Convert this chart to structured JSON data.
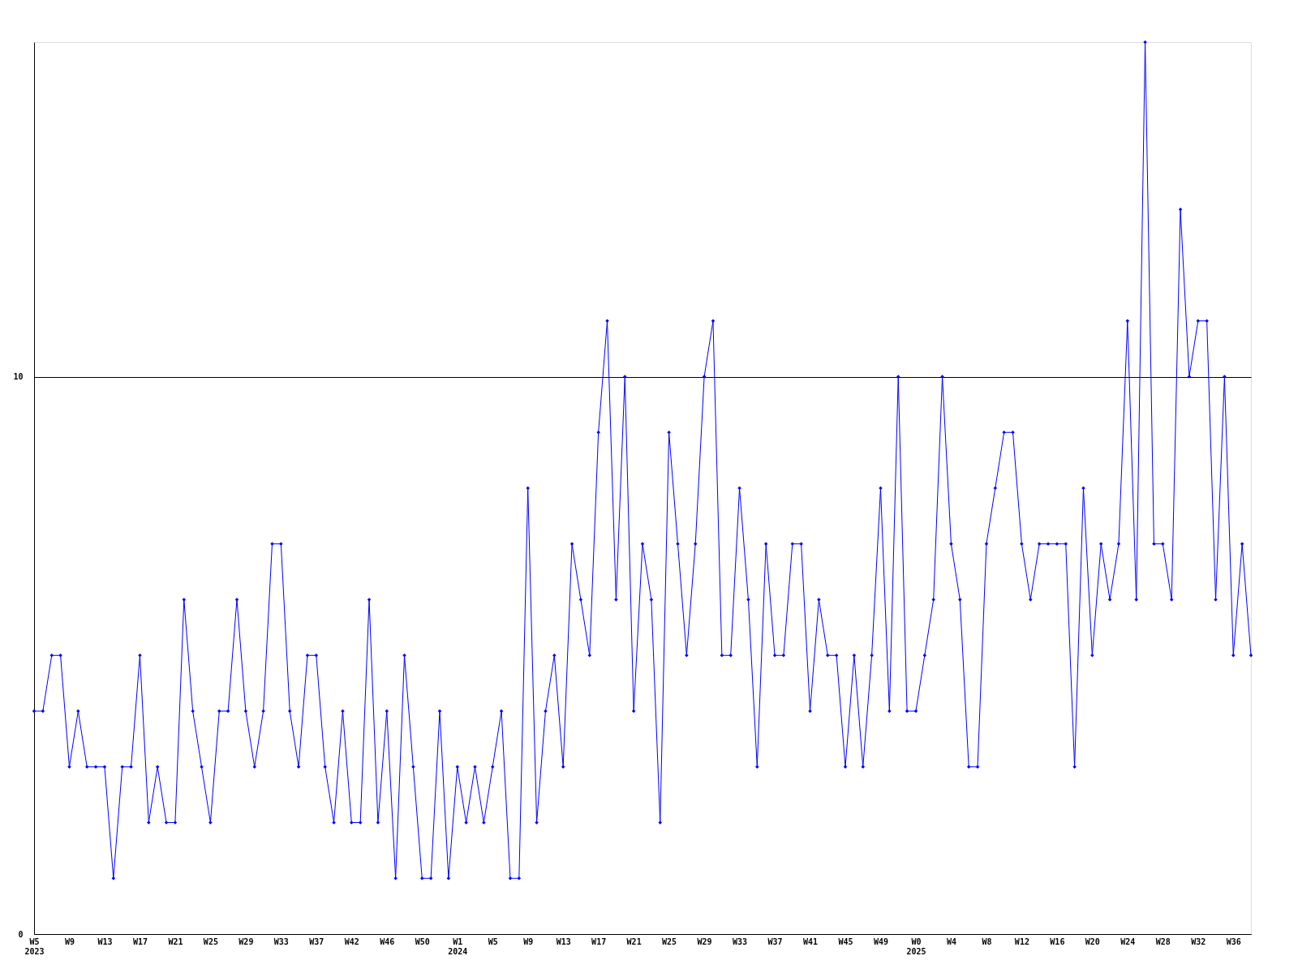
{
  "chart_data": {
    "type": "line",
    "categories": [
      "W5\n2023",
      null,
      null,
      null,
      "W9",
      null,
      null,
      null,
      "W13",
      null,
      null,
      null,
      "W17",
      null,
      null,
      null,
      "W21",
      null,
      null,
      null,
      "W25",
      null,
      null,
      null,
      "W29",
      null,
      null,
      null,
      "W33",
      null,
      null,
      null,
      "W37",
      null,
      null,
      null,
      "W42",
      null,
      null,
      null,
      "W46",
      null,
      null,
      null,
      "W50",
      null,
      null,
      null,
      "W1\n2024",
      null,
      null,
      null,
      "W5",
      null,
      null,
      null,
      "W9",
      null,
      null,
      null,
      "W13",
      null,
      null,
      null,
      "W17",
      null,
      null,
      null,
      "W21",
      null,
      null,
      null,
      "W25",
      null,
      null,
      null,
      "W29",
      null,
      null,
      null,
      "W33",
      null,
      null,
      null,
      "W37",
      null,
      null,
      null,
      "W41",
      null,
      null,
      null,
      "W45",
      null,
      null,
      null,
      "W49",
      null,
      null,
      null,
      "W0\n2025",
      null,
      null,
      null,
      "W4",
      null,
      null,
      null,
      "W8",
      null,
      null,
      null,
      "W12",
      null,
      null,
      null,
      "W16",
      null,
      null,
      null,
      "W20",
      null,
      null,
      null,
      "W24",
      null,
      null,
      null,
      "W28",
      null,
      null,
      null,
      "W32",
      null,
      null,
      null,
      "W36",
      null,
      null
    ],
    "series": [
      {
        "color": "#0000ff",
        "values": [
          4,
          4,
          5,
          5,
          3,
          4,
          3,
          3,
          3,
          1,
          3,
          3,
          5,
          2,
          3,
          2,
          2,
          6,
          4,
          3,
          2,
          4,
          4,
          6,
          4,
          3,
          4,
          7,
          7,
          4,
          3,
          5,
          5,
          3,
          2,
          4,
          2,
          2,
          6,
          2,
          4,
          1,
          5,
          3,
          1,
          1,
          4,
          1,
          3,
          2,
          3,
          2,
          3,
          4,
          1,
          1,
          8,
          2,
          4,
          5,
          3,
          7,
          6,
          5,
          9,
          11,
          6,
          10,
          4,
          7,
          6,
          2,
          9,
          7,
          5,
          7,
          10,
          11,
          5,
          5,
          8,
          6,
          3,
          7,
          5,
          5,
          7,
          7,
          4,
          6,
          5,
          5,
          3,
          5,
          3,
          5,
          8,
          4,
          10,
          4,
          4,
          5,
          6,
          10,
          7,
          6,
          3,
          3,
          7,
          8,
          9,
          9,
          7,
          6,
          7,
          7,
          7,
          7,
          3,
          8,
          5,
          7,
          6,
          7,
          11,
          6,
          16,
          7,
          7,
          6,
          13,
          10,
          11,
          11,
          6,
          10,
          5,
          7,
          5
        ]
      }
    ],
    "ylim": [
      0,
      16
    ],
    "yticks": [
      0,
      10
    ],
    "grid": "y",
    "marker": "diamond"
  }
}
